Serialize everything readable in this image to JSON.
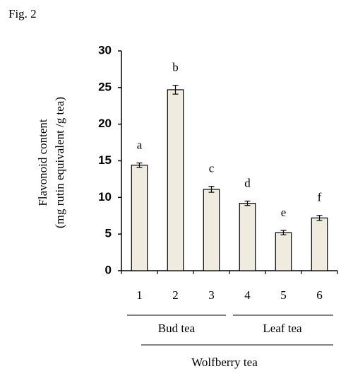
{
  "figure_label": "Fig. 2",
  "chart_data": {
    "type": "bar",
    "y_label": [
      "Flavonoid  content",
      "(mg rutin equivalent /g tea)"
    ],
    "categories": [
      "1",
      "2",
      "3",
      "4",
      "5",
      "6"
    ],
    "values": [
      14.4,
      24.7,
      11.1,
      9.2,
      5.2,
      7.2
    ],
    "errors": [
      0.3,
      0.6,
      0.4,
      0.3,
      0.3,
      0.35
    ],
    "significance_letters": [
      "a",
      "b",
      "c",
      "d",
      "e",
      "f"
    ],
    "groups": [
      "Bud tea",
      "Leaf tea"
    ],
    "group_label": "Wolfberry tea",
    "color": "#efecdf",
    "ylim": [
      0,
      30
    ],
    "yticks": [
      0,
      5,
      10,
      15,
      20,
      25,
      30
    ]
  }
}
